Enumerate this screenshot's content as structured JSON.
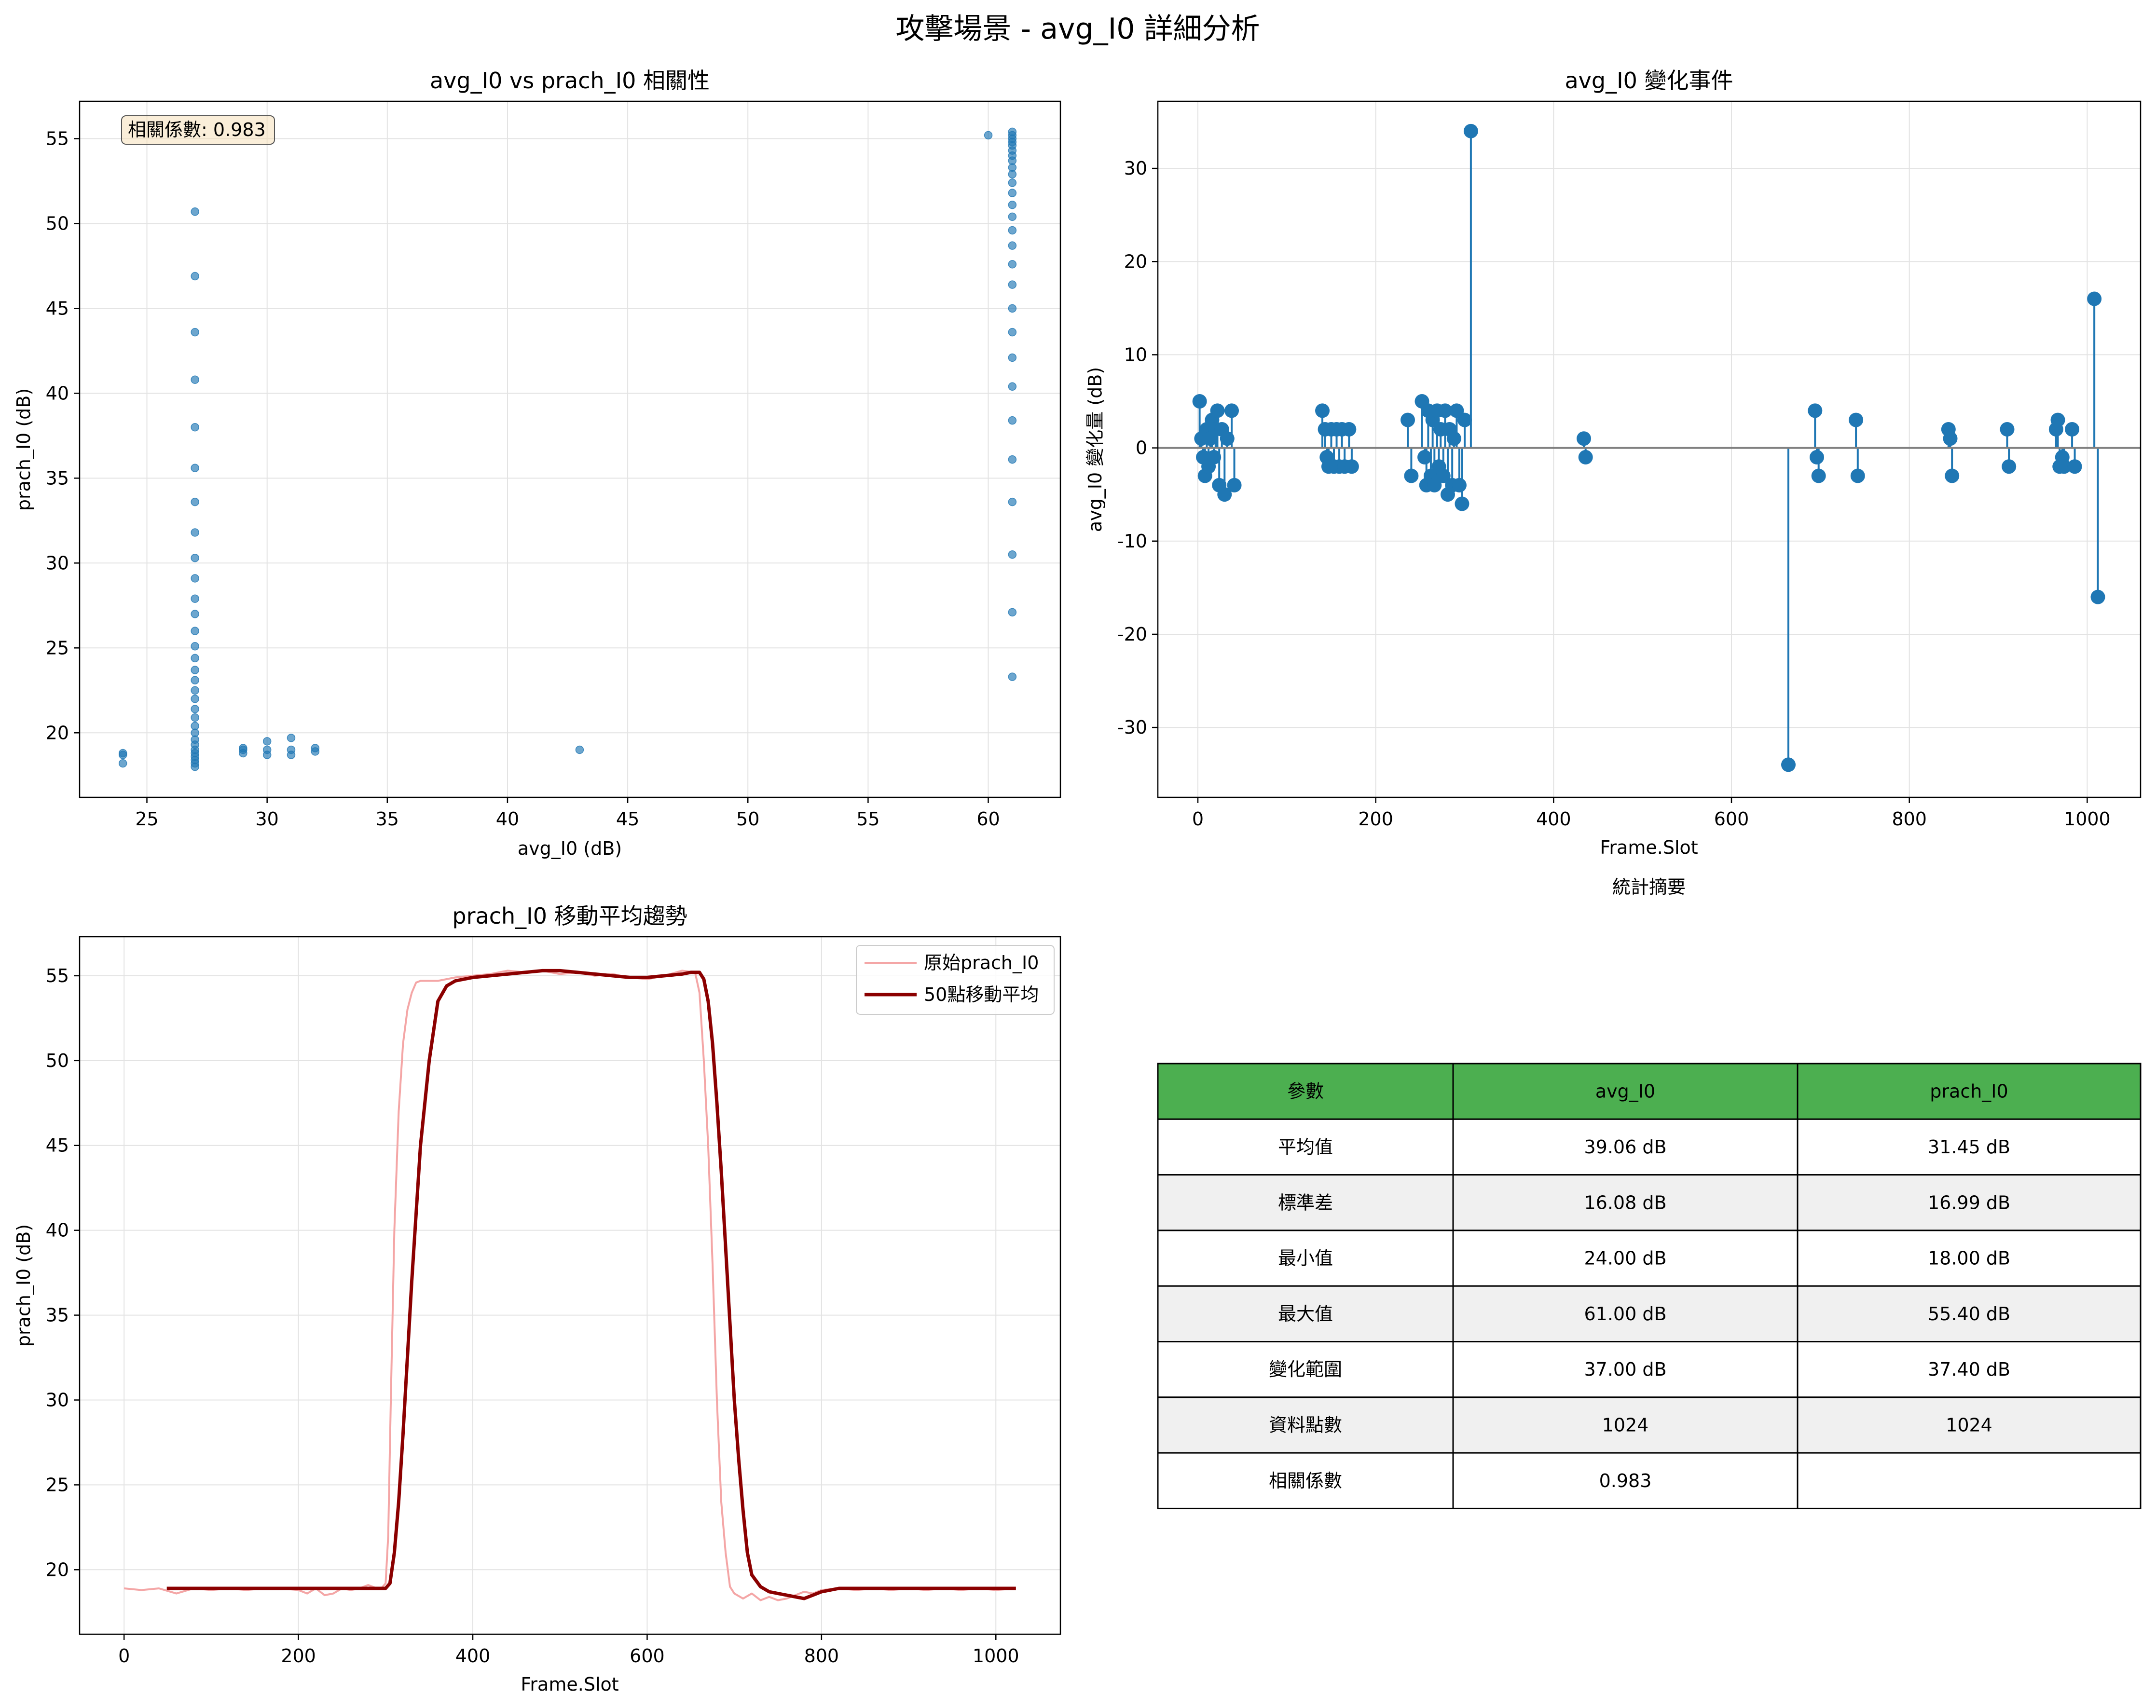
{
  "figure": {
    "title": "攻擊場景 - avg_I0 詳細分析"
  },
  "colors": {
    "scatter": "#1f77b4",
    "stem": "#1f77b4",
    "raw": "#f4a6a6",
    "ma": "#8b0000",
    "header": "#4caf50",
    "stripe": "#f0f0f0",
    "baseline": "#808080"
  },
  "chart_data": [
    {
      "id": "scatter",
      "type": "scatter",
      "title": "avg_I0 vs prach_I0 相關性",
      "xlabel": "avg_I0 (dB)",
      "ylabel": "prach_I0 (dB)",
      "xlim": [
        22.2,
        63.0
      ],
      "ylim": [
        16.2,
        57.2
      ],
      "xticks": [
        25,
        30,
        35,
        40,
        45,
        50,
        55,
        60
      ],
      "yticks": [
        20,
        25,
        30,
        35,
        40,
        45,
        50,
        55
      ],
      "grid": true,
      "annotation": "相關係數: 0.983",
      "annotation_placement": "top-left",
      "points": [
        [
          24,
          18.2
        ],
        [
          24,
          18.7
        ],
        [
          24,
          18.8
        ],
        [
          27,
          18.0
        ],
        [
          27,
          18.2
        ],
        [
          27,
          18.4
        ],
        [
          27,
          18.6
        ],
        [
          27,
          18.8
        ],
        [
          27,
          19.0
        ],
        [
          27,
          19.3
        ],
        [
          27,
          19.6
        ],
        [
          27,
          20.0
        ],
        [
          27,
          20.4
        ],
        [
          27,
          20.9
        ],
        [
          27,
          21.4
        ],
        [
          27,
          22.0
        ],
        [
          27,
          22.5
        ],
        [
          27,
          23.1
        ],
        [
          27,
          23.7
        ],
        [
          27,
          24.4
        ],
        [
          27,
          25.1
        ],
        [
          27,
          26.0
        ],
        [
          27,
          27.0
        ],
        [
          27,
          27.9
        ],
        [
          27,
          29.1
        ],
        [
          27,
          30.3
        ],
        [
          27,
          31.8
        ],
        [
          27,
          33.6
        ],
        [
          27,
          35.6
        ],
        [
          27,
          38.0
        ],
        [
          27,
          40.8
        ],
        [
          27,
          43.6
        ],
        [
          27,
          46.9
        ],
        [
          27,
          50.7
        ],
        [
          29,
          18.8
        ],
        [
          29,
          19.0
        ],
        [
          29,
          19.1
        ],
        [
          30,
          18.7
        ],
        [
          30,
          19.0
        ],
        [
          30,
          19.5
        ],
        [
          31,
          18.7
        ],
        [
          31,
          19.0
        ],
        [
          31,
          19.7
        ],
        [
          32,
          18.9
        ],
        [
          32,
          19.1
        ],
        [
          43,
          19.0
        ],
        [
          60,
          55.2
        ],
        [
          61,
          23.3
        ],
        [
          61,
          27.1
        ],
        [
          61,
          30.5
        ],
        [
          61,
          33.6
        ],
        [
          61,
          36.1
        ],
        [
          61,
          38.4
        ],
        [
          61,
          40.4
        ],
        [
          61,
          42.1
        ],
        [
          61,
          43.6
        ],
        [
          61,
          45.0
        ],
        [
          61,
          46.4
        ],
        [
          61,
          47.6
        ],
        [
          61,
          48.7
        ],
        [
          61,
          49.6
        ],
        [
          61,
          50.4
        ],
        [
          61,
          51.1
        ],
        [
          61,
          51.8
        ],
        [
          61,
          52.4
        ],
        [
          61,
          52.9
        ],
        [
          61,
          53.3
        ],
        [
          61,
          53.7
        ],
        [
          61,
          54.0
        ],
        [
          61,
          54.3
        ],
        [
          61,
          54.6
        ],
        [
          61,
          54.8
        ],
        [
          61,
          55.0
        ],
        [
          61,
          55.2
        ],
        [
          61,
          55.4
        ]
      ]
    },
    {
      "id": "stem",
      "type": "stem",
      "title": "avg_I0 變化事件",
      "xlabel": "Frame.Slot",
      "ylabel": "avg_I0 變化量 (dB)",
      "xlim": [
        -45,
        1060
      ],
      "ylim": [
        -37.5,
        37.2
      ],
      "xticks": [
        0,
        200,
        400,
        600,
        800,
        1000
      ],
      "yticks": [
        -30,
        -20,
        -10,
        0,
        10,
        20,
        30
      ],
      "ytick_labels": [
        "-30",
        "-20",
        "-10",
        "0",
        "10",
        "20",
        "30"
      ],
      "grid": true,
      "points": [
        [
          2,
          5
        ],
        [
          4,
          1
        ],
        [
          6,
          -1
        ],
        [
          8,
          -3
        ],
        [
          10,
          2
        ],
        [
          12,
          -2
        ],
        [
          14,
          1
        ],
        [
          16,
          3
        ],
        [
          18,
          -1
        ],
        [
          20,
          2
        ],
        [
          22,
          4
        ],
        [
          24,
          -4
        ],
        [
          27,
          2
        ],
        [
          30,
          -5
        ],
        [
          33,
          1
        ],
        [
          38,
          4
        ],
        [
          41,
          -4
        ],
        [
          140,
          4
        ],
        [
          143,
          2
        ],
        [
          145,
          -1
        ],
        [
          147,
          -2
        ],
        [
          150,
          2
        ],
        [
          153,
          -2
        ],
        [
          156,
          2
        ],
        [
          159,
          -2
        ],
        [
          162,
          2
        ],
        [
          165,
          -2
        ],
        [
          170,
          2
        ],
        [
          173,
          -2
        ],
        [
          236,
          3
        ],
        [
          240,
          -3
        ],
        [
          252,
          5
        ],
        [
          255,
          -1
        ],
        [
          257,
          -4
        ],
        [
          259,
          4
        ],
        [
          262,
          -3
        ],
        [
          264,
          3
        ],
        [
          266,
          -4
        ],
        [
          269,
          4
        ],
        [
          271,
          -2
        ],
        [
          273,
          2
        ],
        [
          276,
          -3
        ],
        [
          278,
          4
        ],
        [
          281,
          -5
        ],
        [
          283,
          2
        ],
        [
          286,
          -4
        ],
        [
          288,
          1
        ],
        [
          291,
          4
        ],
        [
          294,
          -4
        ],
        [
          297,
          -6
        ],
        [
          300,
          3
        ],
        [
          307,
          34
        ],
        [
          434,
          1
        ],
        [
          436,
          -1
        ],
        [
          664,
          -34
        ],
        [
          694,
          4
        ],
        [
          696,
          -1
        ],
        [
          698,
          -3
        ],
        [
          740,
          3
        ],
        [
          742,
          -3
        ],
        [
          844,
          2
        ],
        [
          846,
          1
        ],
        [
          848,
          -3
        ],
        [
          910,
          2
        ],
        [
          912,
          -2
        ],
        [
          965,
          2
        ],
        [
          967,
          3
        ],
        [
          969,
          -2
        ],
        [
          972,
          -1
        ],
        [
          974,
          -2
        ],
        [
          983,
          2
        ],
        [
          986,
          -2
        ],
        [
          1008,
          16
        ],
        [
          1012,
          -16
        ]
      ]
    },
    {
      "id": "trend",
      "type": "line",
      "title": "prach_I0 移動平均趨勢",
      "xlabel": "Frame.Slot",
      "ylabel": "prach_I0 (dB)",
      "xlim": [
        -51,
        1074
      ],
      "ylim": [
        16.2,
        57.3
      ],
      "xticks": [
        0,
        200,
        400,
        600,
        800,
        1000
      ],
      "yticks": [
        20,
        25,
        30,
        35,
        40,
        45,
        50,
        55
      ],
      "grid": true,
      "legend_placement": "top-right",
      "series": [
        {
          "name": "原始prach_I0",
          "x": [
            0,
            20,
            40,
            60,
            80,
            100,
            120,
            140,
            160,
            180,
            200,
            210,
            220,
            230,
            240,
            250,
            260,
            270,
            280,
            290,
            295,
            300,
            303,
            306,
            310,
            315,
            320,
            325,
            330,
            335,
            340,
            350,
            360,
            380,
            400,
            420,
            440,
            460,
            480,
            500,
            520,
            540,
            560,
            580,
            600,
            620,
            640,
            655,
            660,
            665,
            670,
            675,
            680,
            685,
            690,
            695,
            700,
            710,
            720,
            730,
            740,
            750,
            760,
            770,
            780,
            790,
            800,
            820,
            840,
            860,
            880,
            900,
            920,
            940,
            960,
            980,
            1000,
            1023
          ],
          "y": [
            18.9,
            18.8,
            18.9,
            18.6,
            18.9,
            18.8,
            18.9,
            18.8,
            18.9,
            18.9,
            18.8,
            18.6,
            18.9,
            18.5,
            18.6,
            18.9,
            18.8,
            18.9,
            19.1,
            18.9,
            18.9,
            19.2,
            22.0,
            30.0,
            40.0,
            47.0,
            51.0,
            53.0,
            54.0,
            54.6,
            54.7,
            54.7,
            54.7,
            54.9,
            55.0,
            55.1,
            55.3,
            55.2,
            55.3,
            55.1,
            55.2,
            55.0,
            55.1,
            54.9,
            54.8,
            55.0,
            55.3,
            55.2,
            54.0,
            50.0,
            45.0,
            38.0,
            30.0,
            24.0,
            21.0,
            19.0,
            18.6,
            18.3,
            18.6,
            18.2,
            18.4,
            18.2,
            18.3,
            18.5,
            18.7,
            18.6,
            18.8,
            18.9,
            18.8,
            18.9,
            18.8,
            18.9,
            18.8,
            18.9,
            18.8,
            18.9,
            18.8,
            18.9
          ]
        },
        {
          "name": "50點移動平均",
          "x": [
            49,
            80,
            120,
            160,
            200,
            240,
            280,
            295,
            300,
            305,
            310,
            315,
            320,
            330,
            340,
            350,
            360,
            370,
            380,
            400,
            420,
            440,
            460,
            480,
            500,
            520,
            540,
            560,
            580,
            600,
            620,
            640,
            650,
            660,
            665,
            670,
            675,
            680,
            685,
            690,
            695,
            700,
            705,
            710,
            715,
            720,
            730,
            740,
            750,
            760,
            770,
            780,
            790,
            800,
            820,
            850,
            900,
            950,
            1000,
            1023
          ],
          "y": [
            18.9,
            18.9,
            18.9,
            18.9,
            18.9,
            18.9,
            18.9,
            18.9,
            18.9,
            19.2,
            21.0,
            24.0,
            28.0,
            37.0,
            45.0,
            50.0,
            53.5,
            54.4,
            54.7,
            54.9,
            55.0,
            55.1,
            55.2,
            55.3,
            55.3,
            55.2,
            55.1,
            55.0,
            54.9,
            54.9,
            55.0,
            55.1,
            55.2,
            55.2,
            54.8,
            53.5,
            51.0,
            47.5,
            43.5,
            39.0,
            34.5,
            30.0,
            26.5,
            23.5,
            21.0,
            19.7,
            19.0,
            18.7,
            18.6,
            18.5,
            18.4,
            18.3,
            18.5,
            18.7,
            18.9,
            18.9,
            18.9,
            18.9,
            18.9,
            18.9
          ]
        }
      ]
    }
  ],
  "summary": {
    "title": "統計摘要",
    "headers": [
      "參數",
      "avg_I0",
      "prach_I0"
    ],
    "rows": [
      [
        "平均值",
        "39.06 dB",
        "31.45 dB"
      ],
      [
        "標準差",
        "16.08 dB",
        "16.99 dB"
      ],
      [
        "最小值",
        "24.00 dB",
        "18.00 dB"
      ],
      [
        "最大值",
        "61.00 dB",
        "55.40 dB"
      ],
      [
        "變化範圍",
        "37.00 dB",
        "37.40 dB"
      ],
      [
        "資料點數",
        "1024",
        "1024"
      ],
      [
        "相關係數",
        "0.983",
        ""
      ]
    ]
  }
}
